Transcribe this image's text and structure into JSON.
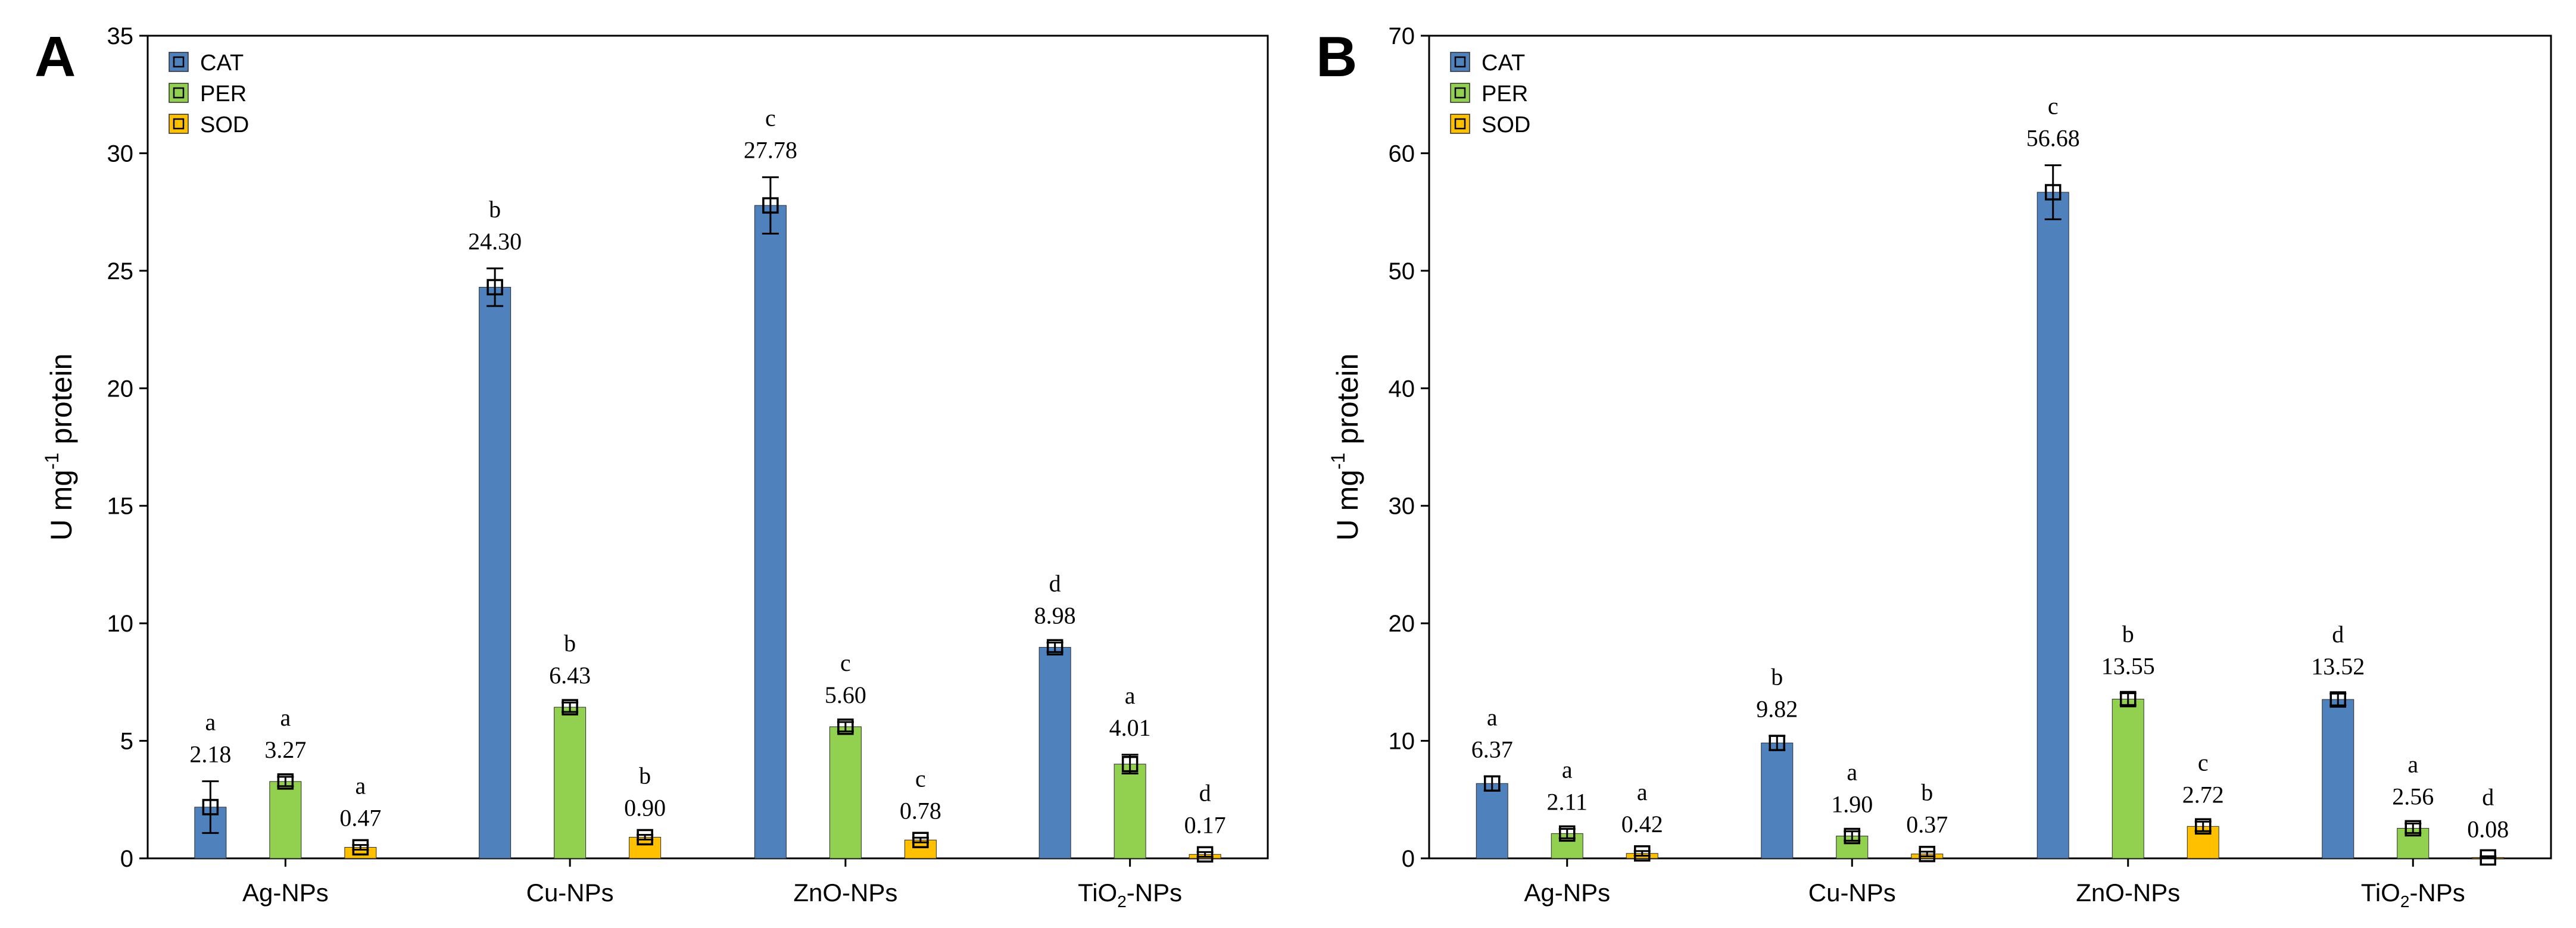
{
  "chart_data": [
    {
      "panel_label": "A",
      "type": "bar",
      "ylabel_main": "U mg",
      "ylabel_sup": "-1",
      "ylabel_tail": " protein",
      "ylim": [
        0,
        35
      ],
      "yticks": [
        0,
        5,
        10,
        15,
        20,
        25,
        30,
        35
      ],
      "categories": [
        {
          "main": "Ag-NPs",
          "sub": "",
          "tail": ""
        },
        {
          "main": "Cu-NPs",
          "sub": "",
          "tail": ""
        },
        {
          "main": "ZnO-NPs",
          "sub": "",
          "tail": ""
        },
        {
          "main": "TiO",
          "sub": "2",
          "tail": "-NPs"
        }
      ],
      "legend": {
        "position": "top-left"
      },
      "series": [
        {
          "name": "CAT",
          "color": "#4f81bd",
          "values": [
            2.18,
            24.3,
            27.78,
            8.98
          ],
          "labels": [
            "2.18",
            "24.30",
            "27.78",
            "8.98"
          ],
          "letters": [
            "a",
            "b",
            "c",
            "d"
          ],
          "errors": [
            1.1,
            0.8,
            1.2,
            0.2
          ]
        },
        {
          "name": "PER",
          "color": "#92d050",
          "values": [
            3.27,
            6.43,
            5.6,
            4.01
          ],
          "labels": [
            "3.27",
            "6.43",
            "5.60",
            "4.01"
          ],
          "letters": [
            "a",
            "b",
            "c",
            "a"
          ],
          "errors": [
            0.2,
            0.2,
            0.2,
            0.4
          ]
        },
        {
          "name": "SOD",
          "color": "#ffc000",
          "values": [
            0.47,
            0.9,
            0.78,
            0.17
          ],
          "labels": [
            "0.47",
            "0.90",
            "0.78",
            "0.17"
          ],
          "letters": [
            "a",
            "b",
            "c",
            "d"
          ],
          "errors": [
            0.1,
            0.1,
            0.1,
            0.1
          ]
        }
      ]
    },
    {
      "panel_label": "B",
      "type": "bar",
      "ylabel_main": "U mg",
      "ylabel_sup": "-1",
      "ylabel_tail": " protein",
      "ylim": [
        0,
        70
      ],
      "yticks": [
        0,
        10,
        20,
        30,
        40,
        50,
        60,
        70
      ],
      "categories": [
        {
          "main": "Ag-NPs",
          "sub": "",
          "tail": ""
        },
        {
          "main": "Cu-NPs",
          "sub": "",
          "tail": ""
        },
        {
          "main": "ZnO-NPs",
          "sub": "",
          "tail": ""
        },
        {
          "main": "TiO",
          "sub": "2",
          "tail": "-NPs"
        }
      ],
      "legend": {
        "position": "top-left"
      },
      "series": [
        {
          "name": "CAT",
          "color": "#4f81bd",
          "values": [
            6.37,
            9.82,
            56.68,
            13.52
          ],
          "labels": [
            "6.37",
            "9.82",
            "56.68",
            "13.52"
          ],
          "letters": [
            "a",
            "b",
            "c",
            "d"
          ],
          "errors": [
            0.6,
            0.6,
            2.3,
            0.5
          ]
        },
        {
          "name": "PER",
          "color": "#92d050",
          "values": [
            2.11,
            1.9,
            13.55,
            2.56
          ],
          "labels": [
            "2.11",
            "1.90",
            "13.55",
            "2.56"
          ],
          "letters": [
            "a",
            "a",
            "b",
            "a"
          ],
          "errors": [
            0.4,
            0.4,
            0.5,
            0.4
          ]
        },
        {
          "name": "SOD",
          "color": "#ffc000",
          "values": [
            0.42,
            0.37,
            2.72,
            0.08
          ],
          "labels": [
            "0.42",
            "0.37",
            "2.72",
            "0.08"
          ],
          "letters": [
            "a",
            "b",
            "c",
            "d"
          ],
          "errors": [
            0.2,
            0.2,
            0.4,
            0.1
          ]
        }
      ]
    }
  ]
}
